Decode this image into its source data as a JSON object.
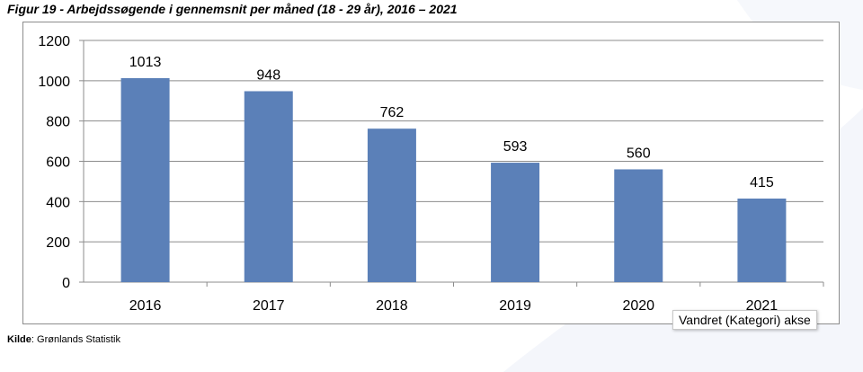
{
  "figure": {
    "title": "Figur 19 - Arbejdssøgende i gennemsnit per måned (18 - 29 år), 2016 – 2021"
  },
  "tooltip": {
    "text": "Vandret (Kategori) akse"
  },
  "source": {
    "label": "Kilde",
    "text": ": Grønlands Statistik"
  },
  "chart_data": {
    "type": "bar",
    "categories": [
      "2016",
      "2017",
      "2018",
      "2019",
      "2020",
      "2021"
    ],
    "values": [
      1013,
      948,
      762,
      593,
      560,
      415
    ],
    "data_labels": [
      "1013",
      "948",
      "762",
      "593",
      "560",
      "415"
    ],
    "yticks": [
      0,
      200,
      400,
      600,
      800,
      1000,
      1200
    ],
    "ylim": [
      0,
      1200
    ],
    "title": "",
    "xlabel": "",
    "ylabel": "",
    "grid": "horizontal",
    "legend": "none",
    "bar_color": "#5b80b8"
  }
}
